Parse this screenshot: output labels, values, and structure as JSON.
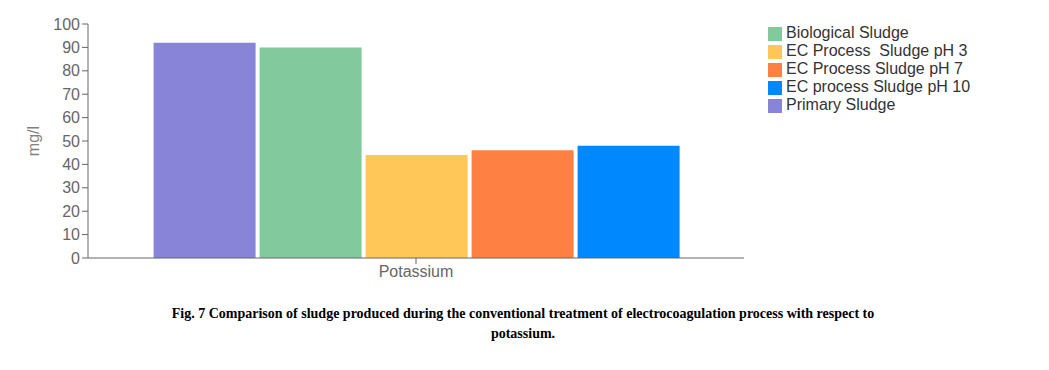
{
  "chart_data": {
    "type": "bar",
    "categories": [
      "Potassium"
    ],
    "ylabel": "mg/l",
    "series": [
      {
        "name": "Primary Sludge",
        "color": "#8884d8",
        "values": [
          92
        ]
      },
      {
        "name": "Biological Sludge",
        "color": "#82ca9d",
        "values": [
          90
        ]
      },
      {
        "name": "EC Process  Sludge pH 3",
        "color": "#ffc658",
        "values": [
          44
        ]
      },
      {
        "name": "EC Process Sludge pH 7",
        "color": "#ff8042",
        "values": [
          46
        ]
      },
      {
        "name": "EC process Sludge pH 10",
        "color": "#0088fe",
        "values": [
          48
        ]
      }
    ],
    "ylim": [
      0,
      100
    ],
    "yticks": [
      0,
      10,
      20,
      30,
      40,
      50,
      60,
      70,
      80,
      90,
      100
    ],
    "grid": false,
    "legend": "right",
    "annotations": [
      "Fig. 7 Comparison of sludge produced during the conventional treatment of electrocoagulation process with respect to",
      "potassium."
    ]
  }
}
